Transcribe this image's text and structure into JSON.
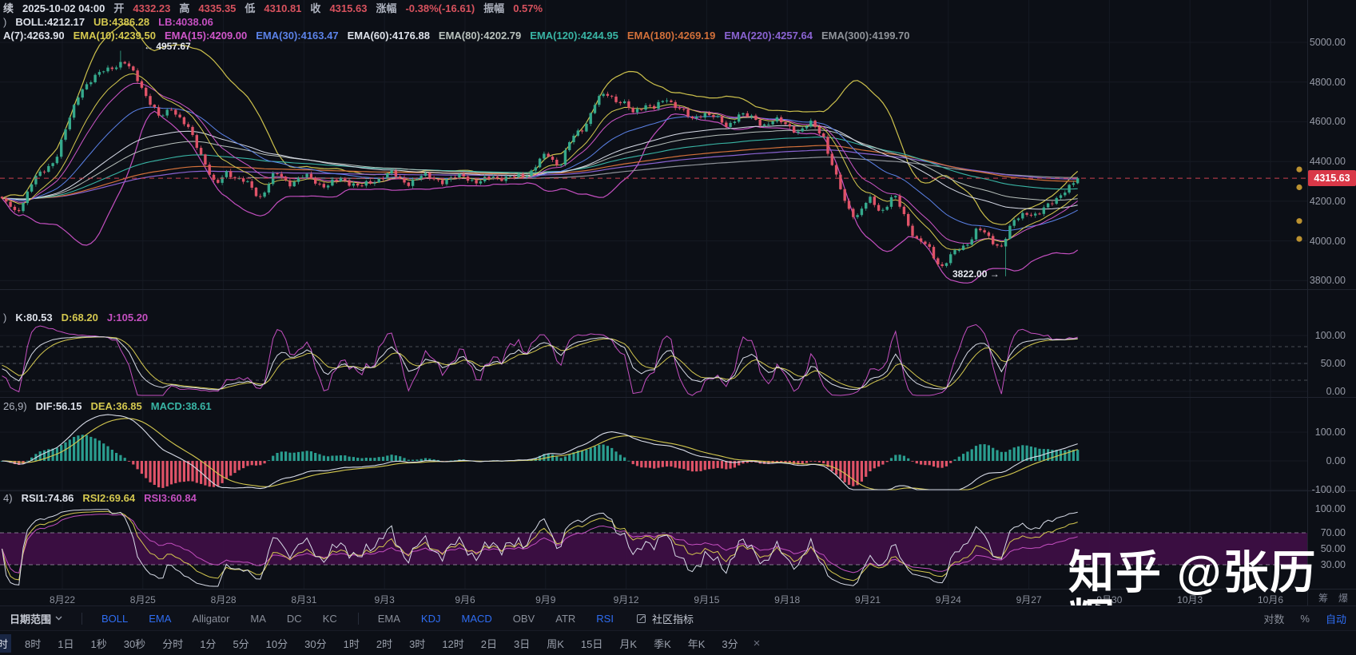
{
  "header": {
    "row1": {
      "prefix": "续",
      "datetime": "2025-10-02 04:00",
      "fields": [
        {
          "label": "开",
          "value": "4332.23"
        },
        {
          "label": "高",
          "value": "4335.35"
        },
        {
          "label": "低",
          "value": "4310.81"
        },
        {
          "label": "收",
          "value": "4315.63"
        },
        {
          "label": "涨幅",
          "value": "-0.38%(-16.61)"
        },
        {
          "label": "振幅",
          "value": "0.57%"
        }
      ]
    },
    "boll_row": {
      "prefix": ")",
      "items": [
        {
          "text": "BOLL:4212.17",
          "color": "#dde1ea"
        },
        {
          "text": "UB:4386.28",
          "color": "#d4c84f"
        },
        {
          "text": "LB:4038.06",
          "color": "#c44fc0"
        }
      ]
    },
    "ema_row": {
      "items": [
        {
          "text": "A(7):4263.90",
          "color": "#dde1ea"
        },
        {
          "text": "EMA(10):4239.50",
          "color": "#d4c84f"
        },
        {
          "text": "EMA(15):4209.00",
          "color": "#cf56c9"
        },
        {
          "text": "EMA(30):4163.47",
          "color": "#5b82e8"
        },
        {
          "text": "EMA(60):4176.88",
          "color": "#dde1ea"
        },
        {
          "text": "EMA(80):4202.79",
          "color": "#b9c2bd"
        },
        {
          "text": "EMA(120):4244.95",
          "color": "#39b5a5"
        },
        {
          "text": "EMA(180):4269.19",
          "color": "#d2703a"
        },
        {
          "text": "EMA(220):4257.64",
          "color": "#8a63d2"
        },
        {
          "text": "EMA(300):4199.70",
          "color": "#8f9399"
        }
      ]
    }
  },
  "kdj_row": {
    "prefix": ")",
    "items": [
      {
        "text": "K:80.53",
        "color": "#dde1ea"
      },
      {
        "text": "D:68.20",
        "color": "#d4c84f"
      },
      {
        "text": "J:105.20",
        "color": "#c44fc0"
      }
    ]
  },
  "macd_row": {
    "prefix": "26,9)",
    "items": [
      {
        "text": "DIF:56.15",
        "color": "#dde1ea"
      },
      {
        "text": "DEA:36.85",
        "color": "#d4c84f"
      },
      {
        "text": "MACD:38.61",
        "color": "#39b5a5"
      }
    ]
  },
  "rsi_row": {
    "prefix": "4)",
    "items": [
      {
        "text": "RSI1:74.86",
        "color": "#dde1ea"
      },
      {
        "text": "RSI2:69.64",
        "color": "#d4c84f"
      },
      {
        "text": "RSI3:60.84",
        "color": "#c44fc0"
      }
    ]
  },
  "annotations": {
    "high": "← 4957.67",
    "low": "3822.00 →"
  },
  "axis": {
    "price_ticks": [
      5000,
      4800,
      4600,
      4400,
      4200,
      4000,
      3800
    ],
    "last_price": 4315.63,
    "kdj_ticks": [
      100,
      50,
      0
    ],
    "macd_ticks": [
      100,
      0,
      -100
    ],
    "rsi_ticks": [
      100,
      70,
      50,
      30
    ],
    "marker_dot_prices": [
      4360,
      4270,
      4100,
      4010
    ],
    "badge_color": "#d93848"
  },
  "dates": [
    "8月22",
    "8月25",
    "8月28",
    "8月31",
    "9月3",
    "9月6",
    "9月9",
    "9月12",
    "9月15",
    "9月18",
    "9月21",
    "9月24",
    "9月27",
    "9月30",
    "10月3",
    "10月6"
  ],
  "watermark": "知乎 @张历辉",
  "side_labels": [
    {
      "label": "筹"
    },
    {
      "label": "爆"
    }
  ],
  "toolbar": {
    "date_range": "日期范围",
    "overlays": [
      {
        "label": "BOLL",
        "active": true
      },
      {
        "label": "EMA",
        "active": true
      },
      {
        "label": "Alligator",
        "active": false
      },
      {
        "label": "MA",
        "active": false
      },
      {
        "label": "DC",
        "active": false
      },
      {
        "label": "KC",
        "active": false
      }
    ],
    "oscillators": [
      {
        "label": "EMA",
        "active": false
      },
      {
        "label": "KDJ",
        "active": true
      },
      {
        "label": "MACD",
        "active": true
      },
      {
        "label": "OBV",
        "active": false
      },
      {
        "label": "ATR",
        "active": false
      },
      {
        "label": "RSI",
        "active": true
      }
    ],
    "community": "社区指标",
    "scale": [
      {
        "label": "对数",
        "active": false
      },
      {
        "label": "%",
        "active": false
      },
      {
        "label": "自动",
        "active": true
      }
    ]
  },
  "timeframes": {
    "items": [
      {
        "label": "时",
        "active": true
      },
      {
        "label": "8时"
      },
      {
        "label": "1日"
      },
      {
        "label": "1秒"
      },
      {
        "label": "30秒"
      },
      {
        "label": "分时"
      },
      {
        "label": "1分"
      },
      {
        "label": "5分"
      },
      {
        "label": "10分"
      },
      {
        "label": "30分"
      },
      {
        "label": "1时"
      },
      {
        "label": "2时"
      },
      {
        "label": "3时"
      },
      {
        "label": "12时"
      },
      {
        "label": "2日"
      },
      {
        "label": "3日"
      },
      {
        "label": "周K"
      },
      {
        "label": "15日"
      },
      {
        "label": "月K"
      },
      {
        "label": "季K"
      },
      {
        "label": "年K"
      },
      {
        "label": "3分"
      }
    ],
    "close_icon": "×"
  },
  "chart_data": {
    "type": "candlestick+indicators",
    "title": "",
    "panels": [
      "price(BOLL+EMA)",
      "KDJ",
      "MACD",
      "RSI"
    ],
    "price_axis_ticks": [
      5000,
      4800,
      4600,
      4400,
      4200,
      4000,
      3800
    ],
    "kdj_axis_ticks": [
      100,
      50,
      0
    ],
    "macd_axis_ticks": [
      100,
      0,
      -100
    ],
    "rsi_axis_ticks": [
      100,
      70,
      50,
      30
    ],
    "rsi_band": [
      30,
      70
    ],
    "kdj_dashed_levels": [
      80,
      50,
      20
    ],
    "high_point": 4957.67,
    "low_point": 3822.0,
    "last_price": 4315.63,
    "x_dates": [
      "8月22",
      "8月25",
      "8月28",
      "8月31",
      "9月3",
      "9月6",
      "9月9",
      "9月12",
      "9月15",
      "9月18",
      "9月21",
      "9月24",
      "9月27",
      "9月30",
      "10月3",
      "10月6"
    ],
    "price_anchors": [
      [
        0,
        4210
      ],
      [
        20,
        4140
      ],
      [
        40,
        4290
      ],
      [
        70,
        4420
      ],
      [
        100,
        4760
      ],
      [
        130,
        4860
      ],
      [
        155,
        4900
      ],
      [
        170,
        4830
      ],
      [
        185,
        4720
      ],
      [
        200,
        4610
      ],
      [
        215,
        4680
      ],
      [
        235,
        4560
      ],
      [
        255,
        4420
      ],
      [
        270,
        4260
      ],
      [
        285,
        4360
      ],
      [
        305,
        4290
      ],
      [
        325,
        4230
      ],
      [
        345,
        4330
      ],
      [
        365,
        4300
      ],
      [
        390,
        4320
      ],
      [
        410,
        4270
      ],
      [
        430,
        4320
      ],
      [
        450,
        4265
      ],
      [
        470,
        4310
      ],
      [
        490,
        4340
      ],
      [
        510,
        4290
      ],
      [
        530,
        4330
      ],
      [
        555,
        4300
      ],
      [
        580,
        4330
      ],
      [
        600,
        4290
      ],
      [
        620,
        4330
      ],
      [
        645,
        4310
      ],
      [
        665,
        4360
      ],
      [
        685,
        4430
      ],
      [
        700,
        4390
      ],
      [
        715,
        4500
      ],
      [
        730,
        4580
      ],
      [
        745,
        4690
      ],
      [
        762,
        4745
      ],
      [
        778,
        4700
      ],
      [
        792,
        4635
      ],
      [
        806,
        4700
      ],
      [
        820,
        4660
      ],
      [
        835,
        4720
      ],
      [
        850,
        4670
      ],
      [
        865,
        4605
      ],
      [
        880,
        4650
      ],
      [
        895,
        4620
      ],
      [
        910,
        4575
      ],
      [
        925,
        4640
      ],
      [
        940,
        4620
      ],
      [
        955,
        4585
      ],
      [
        970,
        4610
      ],
      [
        985,
        4580
      ],
      [
        1000,
        4555
      ],
      [
        1015,
        4585
      ],
      [
        1030,
        4540
      ],
      [
        1045,
        4330
      ],
      [
        1058,
        4185
      ],
      [
        1072,
        4130
      ],
      [
        1088,
        4200
      ],
      [
        1103,
        4160
      ],
      [
        1118,
        4220
      ],
      [
        1133,
        4120
      ],
      [
        1148,
        4005
      ],
      [
        1163,
        3950
      ],
      [
        1178,
        3880
      ],
      [
        1193,
        3925
      ],
      [
        1208,
        3985
      ],
      [
        1223,
        4060
      ],
      [
        1238,
        4010
      ],
      [
        1253,
        3975
      ],
      [
        1268,
        4090
      ],
      [
        1283,
        4150
      ],
      [
        1298,
        4125
      ],
      [
        1313,
        4185
      ],
      [
        1330,
        4245
      ],
      [
        1352,
        4312
      ]
    ],
    "colors": {
      "up": "#35a98c",
      "down": "#df5368",
      "boll_ub": "#cdc14c",
      "boll_lb": "#c44fc0",
      "ema10": "#d4c84f",
      "ema15": "#cf56c9",
      "ema30": "#5b82e8",
      "ema60": "#d8dce8",
      "ema80": "#b9c2bd",
      "ema120": "#39b5a5",
      "ema180": "#d2703a",
      "ema220": "#8a63d2",
      "ema300": "#8f9399",
      "k_line": "#d8dce8",
      "d_line": "#d4c84f",
      "j_line": "#c44fc0",
      "dif": "#d8dce8",
      "dea": "#d4c84f",
      "hist_up": "#2a9d8f",
      "hist_down": "#df5368",
      "rsi1": "#d8dce8",
      "rsi2": "#d4c84f",
      "rsi3": "#c44fc0",
      "last_price_line": "#cc4251",
      "rsi_band_fill": "#3f0e46",
      "marker_dot": "#bb9130"
    }
  }
}
